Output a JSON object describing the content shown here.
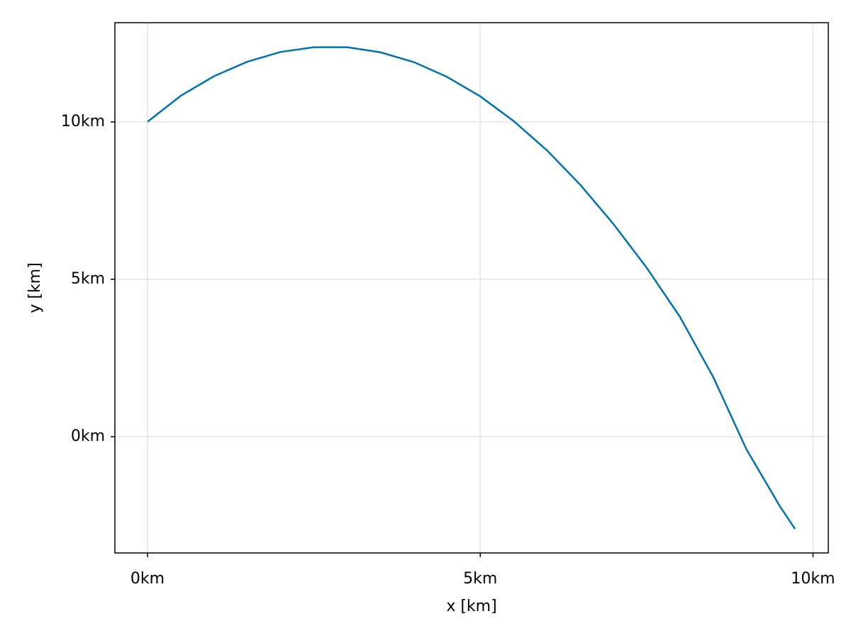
{
  "chart_data": {
    "type": "line",
    "x_label": "x [km]",
    "y_label": "y [km]",
    "x": [
      0,
      0.5,
      1,
      1.5,
      2,
      2.5,
      3,
      3.5,
      4,
      4.5,
      5,
      5.5,
      6,
      6.5,
      7,
      7.5,
      8,
      8.5,
      9,
      9.5,
      9.73
    ],
    "series": [
      {
        "color": "#0072b2",
        "values": [
          10.0,
          10.83,
          11.45,
          11.91,
          12.22,
          12.37,
          12.37,
          12.21,
          11.9,
          11.43,
          10.81,
          10.03,
          9.1,
          8.01,
          6.76,
          5.37,
          3.81,
          1.9,
          -0.4,
          -2.2,
          -2.93
        ]
      }
    ],
    "xlim": [
      -0.49,
      10.23
    ],
    "ylim": [
      -3.69,
      13.15
    ],
    "xticks": [
      {
        "value": 0,
        "label": "0km"
      },
      {
        "value": 5,
        "label": "5km"
      },
      {
        "value": 10,
        "label": "10km"
      }
    ],
    "yticks": [
      {
        "value": 0,
        "label": "0km"
      },
      {
        "value": 5,
        "label": "5km"
      },
      {
        "value": 10,
        "label": "10km"
      }
    ],
    "grid": true
  }
}
